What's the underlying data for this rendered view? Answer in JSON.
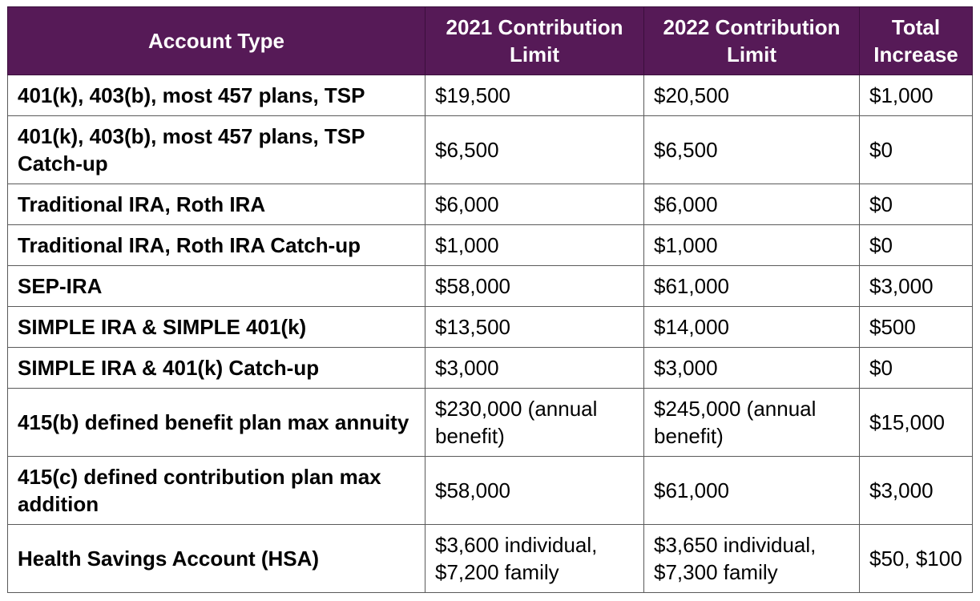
{
  "table": {
    "headers": {
      "account_type": "Account Type",
      "limit_2021": "2021 Contribution Limit",
      "limit_2022": "2022 Contribution Limit",
      "total_increase": "Total Increase"
    },
    "rows": [
      {
        "account": "401(k), 403(b), most 457 plans, TSP",
        "limit_2021": "$19,500",
        "limit_2022": "$20,500",
        "increase": "$1,000"
      },
      {
        "account": "401(k), 403(b), most 457 plans, TSP Catch-up",
        "limit_2021": "$6,500",
        "limit_2022": "$6,500",
        "increase": "$0"
      },
      {
        "account": "Traditional IRA, Roth IRA",
        "limit_2021": "$6,000",
        "limit_2022": "$6,000",
        "increase": "$0"
      },
      {
        "account": "Traditional IRA, Roth IRA Catch-up",
        "limit_2021": "$1,000",
        "limit_2022": "$1,000",
        "increase": "$0"
      },
      {
        "account": "SEP-IRA",
        "limit_2021": "$58,000",
        "limit_2022": "$61,000",
        "increase": "$3,000"
      },
      {
        "account": "SIMPLE IRA & SIMPLE 401(k)",
        "limit_2021": "$13,500",
        "limit_2022": "$14,000",
        "increase": "$500"
      },
      {
        "account": "SIMPLE IRA & 401(k) Catch-up",
        "limit_2021": "$3,000",
        "limit_2022": "$3,000",
        "increase": "$0"
      },
      {
        "account": "415(b) defined benefit plan max annuity",
        "limit_2021": "$230,000 (annual benefit)",
        "limit_2022": "$245,000 (annual benefit)",
        "increase": "$15,000"
      },
      {
        "account": "415(c) defined contribution plan max addition",
        "limit_2021": "$58,000",
        "limit_2022": "$61,000",
        "increase": "$3,000"
      },
      {
        "account": "Health Savings Account (HSA)",
        "limit_2021": "$3,600 individual, $7,200 family",
        "limit_2022": "$3,650 individual, $7,300 family",
        "increase": "$50, $100"
      }
    ]
  },
  "colors": {
    "header_bg": "#561a57",
    "header_text": "#ffffff",
    "border": "#5a5a5a"
  }
}
